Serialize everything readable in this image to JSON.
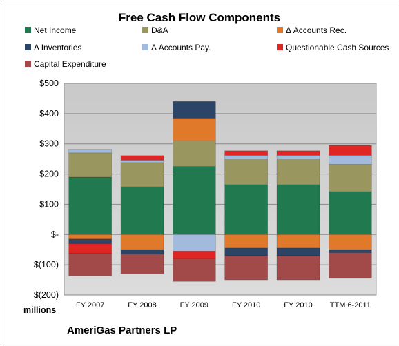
{
  "company": "AmeriGas Partners LP",
  "chart_data": {
    "type": "bar",
    "stacked": true,
    "title": "Free Cash Flow Components",
    "xlabel": "",
    "ylabel": "millions",
    "ylim": [
      -200,
      500
    ],
    "yticks": [
      {
        "value": 500,
        "label": "$500"
      },
      {
        "value": 400,
        "label": "$400"
      },
      {
        "value": 300,
        "label": "$300"
      },
      {
        "value": 200,
        "label": "$200"
      },
      {
        "value": 100,
        "label": "$100"
      },
      {
        "value": 0,
        "label": "$-"
      },
      {
        "value": -100,
        "label": "$(100)"
      },
      {
        "value": -200,
        "label": "$(200)"
      }
    ],
    "grid": true,
    "legend_position": "top",
    "categories": [
      "FY 2007",
      "FY 2008",
      "FY 2009",
      "FY 2010",
      "FY 2010",
      "TTM 6-2011"
    ],
    "series": [
      {
        "name": "Net Income",
        "color": "#217a4f",
        "values": [
          190,
          158,
          225,
          165,
          165,
          142
        ]
      },
      {
        "name": "D&A",
        "color": "#9a9660",
        "values": [
          80,
          80,
          85,
          85,
          85,
          90
        ]
      },
      {
        "name": "Δ Accounts Rec.",
        "color": "#e07a2a",
        "values": [
          -15,
          -50,
          75,
          -45,
          -45,
          -50
        ]
      },
      {
        "name": "Δ Inventories",
        "color": "#2c4466",
        "values": [
          -15,
          -15,
          55,
          -25,
          -25,
          -10
        ]
      },
      {
        "name": "Δ Accounts Pay.",
        "color": "#a2bbdc",
        "values": [
          12,
          8,
          -55,
          12,
          12,
          30
        ]
      },
      {
        "name": "Questionable Cash Sources",
        "color": "#e02525",
        "values": [
          -32,
          15,
          -25,
          15,
          15,
          33
        ]
      },
      {
        "name": "Capital Expenditure",
        "color": "#a24a4a",
        "values": [
          -75,
          -65,
          -75,
          -80,
          -80,
          -85
        ]
      }
    ]
  }
}
